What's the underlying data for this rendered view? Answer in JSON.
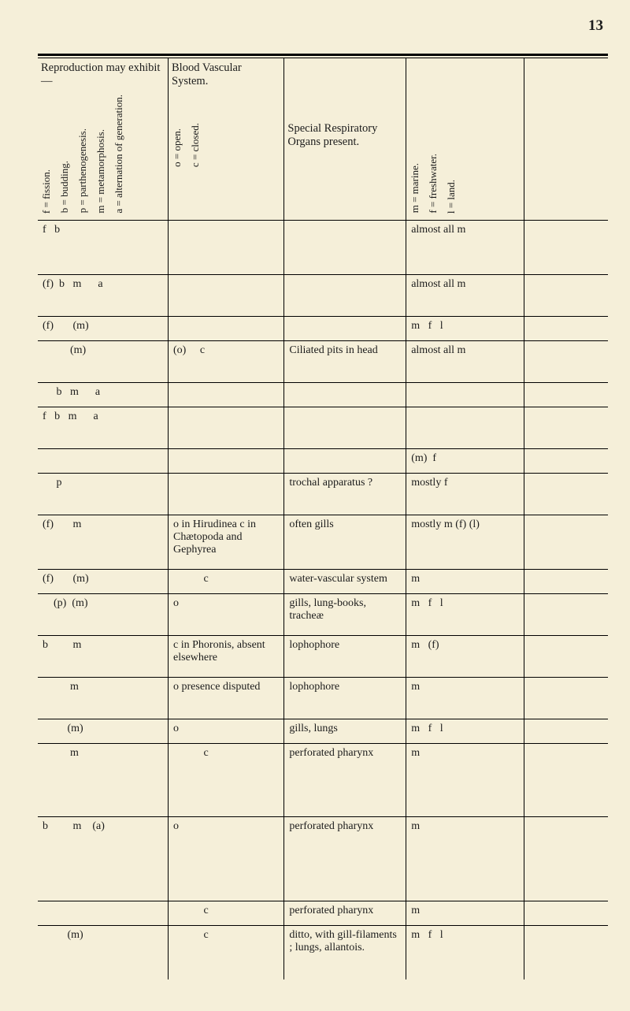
{
  "page_number": "13",
  "columns": {
    "repro": {
      "title": "Reproduction may exhibit—",
      "legend": [
        "f = fission.",
        "b = budding.",
        "p = parthenogenesis.",
        "m = metamorphosis.",
        "a = alternation of generation."
      ]
    },
    "blood": {
      "title": "Blood Vascular System.",
      "legend": [
        "o = open.",
        "c = closed."
      ]
    },
    "resp": {
      "title": "Special Respiratory Organs present."
    },
    "habitat": {
      "legend": [
        "m = marine.",
        "f = freshwater.",
        "l = land."
      ]
    }
  },
  "rows": [
    {
      "repro": "f   b",
      "blood": "",
      "resp": "",
      "habitat": "almost all m",
      "cls": "tall-row"
    },
    {
      "repro": "(f)  b   m      a",
      "blood": "",
      "resp": "",
      "habitat": "almost all m",
      "cls": "med-row"
    },
    {
      "repro": "(f)       (m)",
      "blood": "",
      "resp": "",
      "habitat": "m   f   l",
      "cls": ""
    },
    {
      "repro": "          (m)",
      "blood": "(o)     c",
      "resp": "Ciliated pits in head",
      "habitat": "almost all m",
      "cls": "med-row"
    },
    {
      "repro": "     b   m      a",
      "blood": "",
      "resp": "",
      "habitat": "",
      "cls": ""
    },
    {
      "repro": "f   b   m      a",
      "blood": "",
      "resp": "",
      "habitat": "",
      "cls": "med-row"
    },
    {
      "repro": "",
      "blood": "",
      "resp": "",
      "habitat": "(m)  f",
      "cls": ""
    },
    {
      "repro": "     p",
      "blood": "",
      "resp": "trochal apparatus ?",
      "habitat": "mostly f",
      "cls": "med-row"
    },
    {
      "repro": "(f)       m",
      "blood": "o in Hirudinea c in Chætopoda and Gephyrea",
      "resp": "often gills",
      "habitat": "mostly m (f) (l)",
      "cls": "tall-row"
    },
    {
      "repro": "(f)       (m)",
      "blood": "           c",
      "resp": "water-vascular system",
      "habitat": "m",
      "cls": ""
    },
    {
      "repro": "    (p)  (m)",
      "blood": "o",
      "resp": "gills, lung-books, tracheæ",
      "habitat": "m   f   l",
      "cls": "med-row"
    },
    {
      "repro": "b         m",
      "blood": "c in Phoronis, absent elsewhere",
      "resp": "lophophore",
      "habitat": "m   (f)",
      "cls": "med-row"
    },
    {
      "repro": "          m",
      "blood": "o presence disputed",
      "resp": "lophophore",
      "habitat": "m",
      "cls": "med-row"
    },
    {
      "repro": "         (m)",
      "blood": "o",
      "resp": "gills, lungs",
      "habitat": "m   f   l",
      "cls": ""
    },
    {
      "repro": "          m",
      "blood": "           c",
      "resp": "perforated pharynx",
      "habitat": "m",
      "cls": "big-row"
    },
    {
      "repro": "b         m    (a)",
      "blood": "o",
      "resp": "perforated pharynx",
      "habitat": "m",
      "cls": "biggest-row"
    },
    {
      "repro": "",
      "blood": "           c",
      "resp": "perforated pharynx",
      "habitat": "m",
      "cls": ""
    },
    {
      "repro": "         (m)",
      "blood": "           c",
      "resp": "ditto, with gill-filaments ; lungs, allantois.",
      "habitat": "m   f   l",
      "cls": "tall-row"
    }
  ]
}
